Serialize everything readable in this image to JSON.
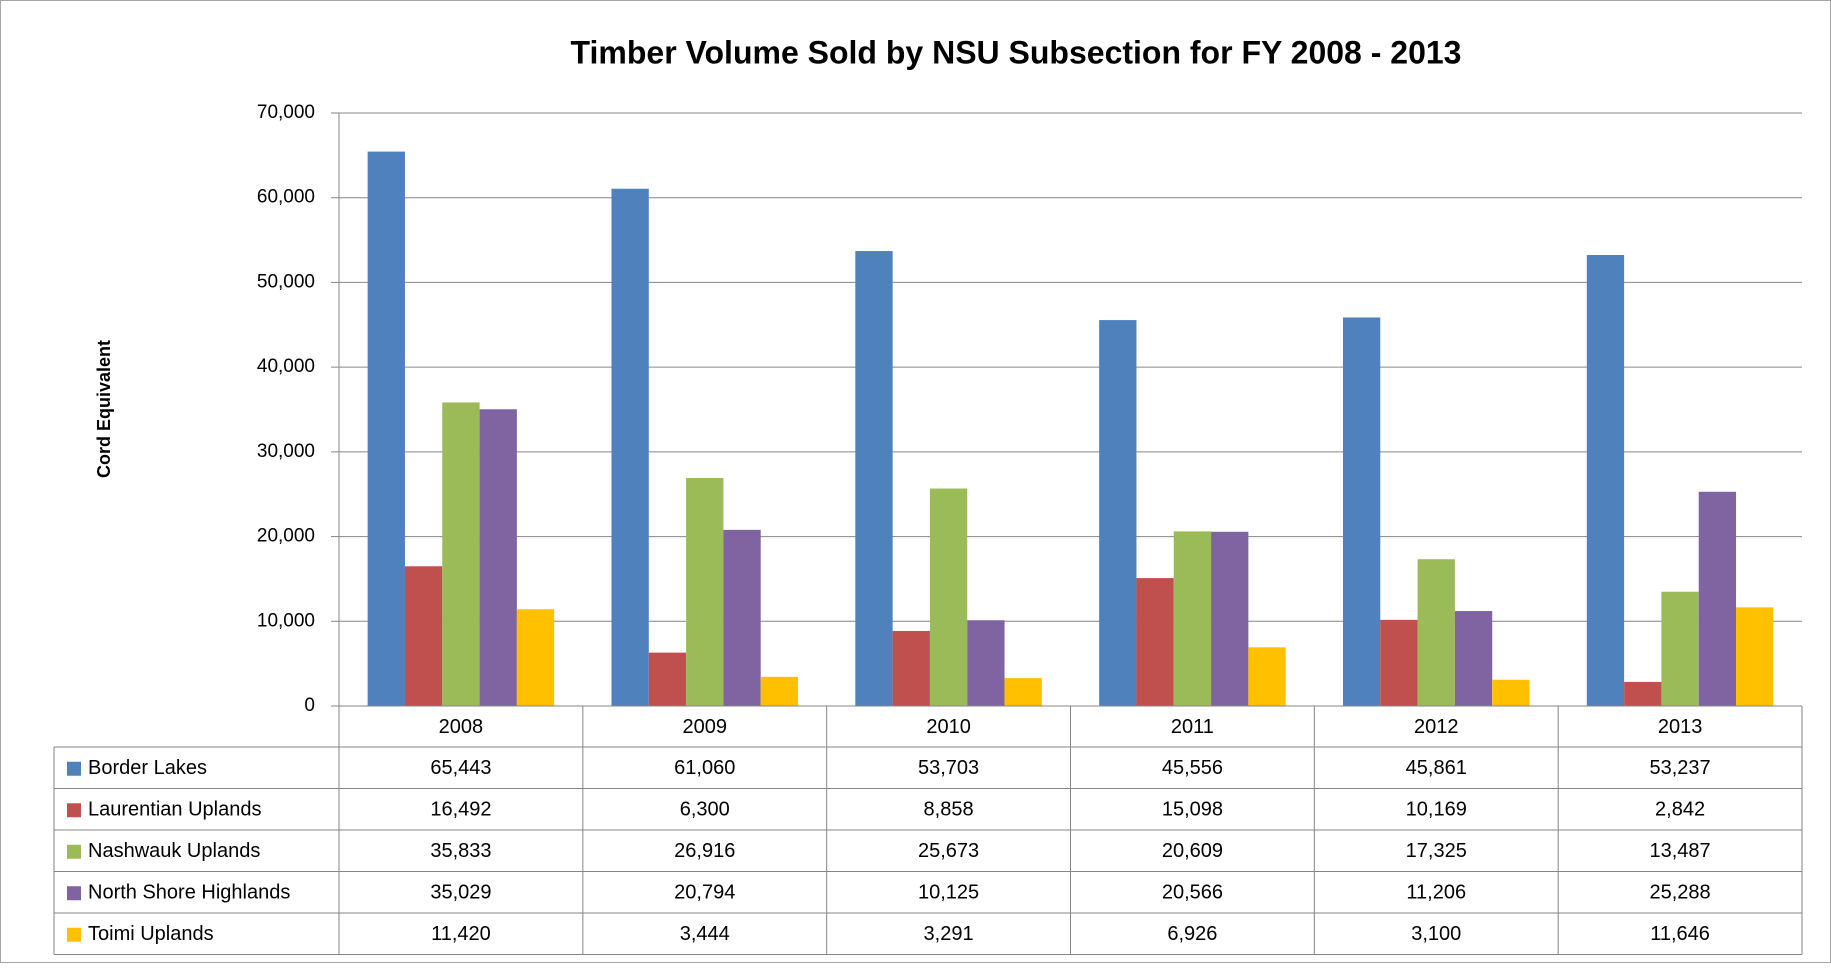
{
  "chart_data": {
    "type": "bar",
    "title": "Timber Volume Sold by NSU Subsection for FY 2008 - 2013",
    "y_label": "Cord Equivalent",
    "categories": [
      "2008",
      "2009",
      "2010",
      "2011",
      "2012",
      "2013"
    ],
    "series": [
      {
        "name": "Border Lakes",
        "color": "#4f81bd",
        "values": [
          65443,
          61060,
          53703,
          45556,
          45861,
          53237
        ],
        "value_labels": [
          "65,443",
          "61,060",
          "53,703",
          "45,556",
          "45,861",
          "53,237"
        ]
      },
      {
        "name": "Laurentian Uplands",
        "color": "#c0504d",
        "values": [
          16492,
          6300,
          8858,
          15098,
          10169,
          2842
        ],
        "value_labels": [
          "16,492",
          "6,300",
          "8,858",
          "15,098",
          "10,169",
          "2,842"
        ]
      },
      {
        "name": "Nashwauk Uplands",
        "color": "#9bbb59",
        "values": [
          35833,
          26916,
          25673,
          20609,
          17325,
          13487
        ],
        "value_labels": [
          "35,833",
          "26,916",
          "25,673",
          "20,609",
          "17,325",
          "13,487"
        ]
      },
      {
        "name": "North Shore Highlands",
        "color": "#8064a2",
        "values": [
          35029,
          20794,
          10125,
          20566,
          11206,
          25288
        ],
        "value_labels": [
          "35,029",
          "20,794",
          "10,125",
          "20,566",
          "11,206",
          "25,288"
        ]
      },
      {
        "name": "Toimi Uplands",
        "color": "#ffc000",
        "values": [
          11420,
          3444,
          3291,
          6926,
          3100,
          11646
        ],
        "value_labels": [
          "11,420",
          "3,444",
          "3,291",
          "6,926",
          "3,100",
          "11,646"
        ]
      }
    ],
    "ylim": [
      0,
      70000
    ],
    "yticks": [
      0,
      {
        "value": 10000,
        "label": "10,000"
      },
      {
        "value": 20000,
        "label": "20,000"
      },
      {
        "value": 30000,
        "label": "30,000"
      },
      {
        "value": 40000,
        "label": "40,000"
      },
      {
        "value": 50000,
        "label": "50,000"
      },
      {
        "value": 60000,
        "label": "60,000"
      },
      {
        "value": 70000,
        "label": "70,000"
      }
    ],
    "grid": true
  }
}
